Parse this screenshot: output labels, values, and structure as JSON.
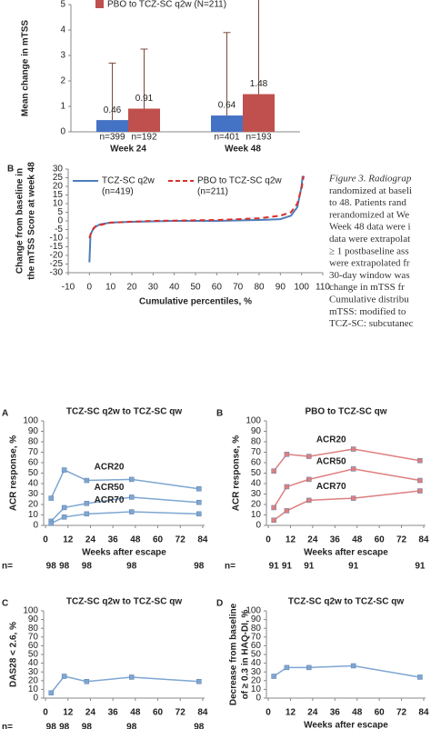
{
  "chart_data": [
    {
      "type": "bar",
      "ylabel": "Mean change in mTSS",
      "categories": [
        "Week 24",
        "Week 48"
      ],
      "ylim": [
        0,
        5
      ],
      "yticks": [
        0,
        1,
        2,
        3,
        4,
        5
      ],
      "series": [
        {
          "color": "#4472c4",
          "values": [
            0.46,
            0.64
          ],
          "errors": [
            2.24,
            3.26
          ],
          "n": [
            "n=399",
            "n=401"
          ]
        },
        {
          "name": "PBO to TCZ-SC q2w (N=211)",
          "color": "#c0504d",
          "values": [
            0.91,
            1.48
          ],
          "errors": [
            2.34,
            4.12
          ],
          "n": [
            "n=192",
            "n=193"
          ]
        }
      ]
    },
    {
      "type": "line",
      "panel": "B",
      "ylabel": [
        "Change from baseline in",
        "the mTSS Score at week 48"
      ],
      "xlabel": "Cumulative percentiles, %",
      "xlim": [
        -10,
        110
      ],
      "xticks": [
        -10,
        0,
        10,
        20,
        30,
        40,
        50,
        60,
        70,
        80,
        90,
        100,
        110
      ],
      "ylim": [
        -30,
        30
      ],
      "yticks": [
        -30,
        -25,
        -20,
        -15,
        -10,
        -5,
        0,
        5,
        10,
        15,
        20,
        25,
        30
      ],
      "series": [
        {
          "name": "TCZ-SC q2w",
          "n_label": "(n=419)",
          "color": "#4a7ebb",
          "dash": false,
          "x": [
            0,
            0.5,
            2,
            5,
            10,
            20,
            40,
            60,
            80,
            90,
            95,
            98,
            100,
            100.5
          ],
          "values": [
            -24,
            -8,
            -4,
            -2,
            -1,
            -0.5,
            0,
            0,
            0.5,
            1,
            3,
            8,
            20,
            26
          ]
        },
        {
          "name": "PBO to TCZ-SC q2w",
          "n_label": "(n=211)",
          "color": "#d9302a",
          "dash": true,
          "x": [
            0,
            1,
            3,
            10,
            30,
            60,
            80,
            90,
            95,
            98,
            100,
            101
          ],
          "values": [
            -10,
            -6,
            -3,
            -1,
            0,
            0.5,
            1.5,
            3,
            5,
            10,
            19,
            26
          ]
        }
      ]
    },
    {
      "type": "line",
      "panel": "A",
      "title": "TCZ-SC q2w to TCZ-SC qw",
      "ylabel": [
        "ACR response, %"
      ],
      "xlabel": "Weeks after escape",
      "series_labels": true,
      "markers": true,
      "x": [
        3,
        10,
        22,
        46,
        82
      ],
      "xlim": [
        -1,
        85
      ],
      "xticks": [
        0,
        12,
        24,
        36,
        48,
        60,
        72,
        84
      ],
      "ylim": [
        0,
        100
      ],
      "yticks": [
        0,
        10,
        20,
        30,
        40,
        50,
        60,
        70,
        80,
        90,
        100
      ],
      "n_label": "n=",
      "n": [
        98,
        98,
        98,
        98,
        98
      ],
      "series": [
        {
          "name": "ACR20",
          "color": "#7ea6d3",
          "values": [
            26,
            53,
            43,
            44,
            35
          ]
        },
        {
          "name": "ACR50",
          "color": "#7ea6d3",
          "values": [
            4,
            17,
            21,
            27,
            22
          ]
        },
        {
          "name": "ACR70",
          "color": "#7ea6d3",
          "values": [
            2,
            8,
            11,
            13,
            11
          ]
        }
      ]
    },
    {
      "type": "line",
      "panel": "B",
      "title": "PBO to TCZ-SC qw",
      "ylabel": [
        "ACR response, %"
      ],
      "xlabel": "Weeks after escape",
      "series_labels": true,
      "markers": true,
      "x": [
        3,
        10,
        22,
        46,
        82
      ],
      "xlim": [
        -1,
        85
      ],
      "xticks": [
        0,
        12,
        24,
        36,
        48,
        60,
        72,
        84
      ],
      "ylim": [
        0,
        100
      ],
      "yticks": [
        0,
        10,
        20,
        30,
        40,
        50,
        60,
        70,
        80,
        90,
        100
      ],
      "n_label": "n=",
      "n": [
        91,
        91,
        91,
        91,
        91
      ],
      "series": [
        {
          "name": "ACR20",
          "color": "#de7f7f",
          "values": [
            52,
            68,
            66,
            73,
            62
          ]
        },
        {
          "name": "ACR50",
          "color": "#de7f7f",
          "values": [
            17,
            37,
            44,
            54,
            43
          ]
        },
        {
          "name": "ACR70",
          "color": "#de7f7f",
          "values": [
            5,
            14,
            24,
            26,
            33
          ]
        }
      ]
    },
    {
      "type": "line",
      "panel": "C",
      "title": "TCZ-SC q2w to TCZ-SC qw",
      "ylabel": [
        "DAS28 < 2.6, %"
      ],
      "markers": true,
      "x": [
        3,
        10,
        22,
        46,
        82
      ],
      "xlim": [
        -1,
        85
      ],
      "xticks": [
        0,
        12,
        24,
        36,
        48,
        60,
        72,
        84
      ],
      "ylim": [
        0,
        100
      ],
      "yticks": [
        0,
        10,
        20,
        30,
        40,
        50,
        60,
        70,
        80,
        90,
        100
      ],
      "n_label": "n=",
      "n": [
        98,
        98,
        98,
        98,
        98
      ],
      "series": [
        {
          "color": "#7ea6d3",
          "values": [
            6,
            25,
            19,
            24,
            19
          ]
        }
      ]
    },
    {
      "type": "line",
      "panel": "D",
      "title": "TCZ-SC q2w to TCZ-SC qw",
      "ylabel": [
        "Decrease from baseline",
        "of ≥ 0.3 in HAQ-DI, %"
      ],
      "xlabel": "Weeks after escape",
      "markers": true,
      "x": [
        3,
        10,
        22,
        46,
        82
      ],
      "xlim": [
        -1,
        85
      ],
      "xticks": [
        0,
        12,
        24,
        36,
        48,
        60,
        72,
        84
      ],
      "ylim": [
        0,
        100
      ],
      "yticks": [
        0,
        10,
        20,
        30,
        40,
        50,
        60,
        70,
        80,
        90,
        100
      ],
      "series": [
        {
          "color": "#7ea6d3",
          "values": [
            25,
            35,
            35,
            37,
            24
          ]
        }
      ]
    }
  ],
  "caption": {
    "lines": [
      "Figure 3. Radiograp",
      "randomized at baseli",
      "to 48. Patients rand",
      "rerandomized at We",
      "Week 48 data were i",
      "data were extrapolat",
      "≥ 1 postbaseline ass",
      "were extrapolated fr",
      "30-day window was",
      "change in mTSS fr",
      "Cumulative distribu",
      "mTSS: modified to",
      "TCZ-SC: subcutanec"
    ]
  }
}
